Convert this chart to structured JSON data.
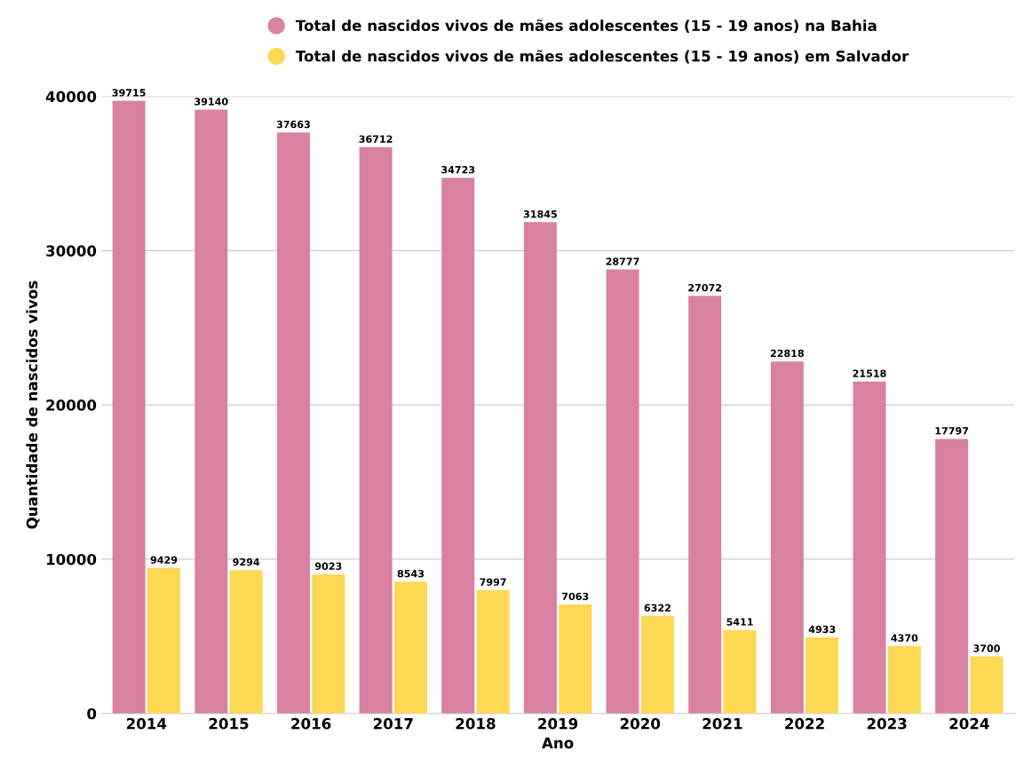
{
  "chart_data": {
    "type": "bar",
    "xlabel": "Ano",
    "ylabel": "Quantidade de nascidos vivos",
    "categories": [
      "2014",
      "2015",
      "2016",
      "2017",
      "2018",
      "2019",
      "2020",
      "2021",
      "2022",
      "2023",
      "2024"
    ],
    "series": [
      {
        "name": "Total de nascidos vivos de mães adolescentes (15 - 19 anos) na Bahia",
        "color": "#d981a3",
        "values": [
          39715,
          39140,
          37663,
          36712,
          34723,
          31845,
          28777,
          27072,
          22818,
          21518,
          17797
        ]
      },
      {
        "name": "Total de nascidos vivos de mães adolescentes (15 - 19 anos) em Salvador",
        "color": "#fdd853",
        "values": [
          9429,
          9294,
          9023,
          8543,
          7997,
          7063,
          6322,
          5411,
          4933,
          4370,
          3700
        ]
      }
    ],
    "ylim": [
      0,
      40000
    ],
    "yticks": [
      0,
      10000,
      20000,
      30000,
      40000
    ],
    "grid": "y",
    "legend": "top",
    "data_labels": true
  }
}
